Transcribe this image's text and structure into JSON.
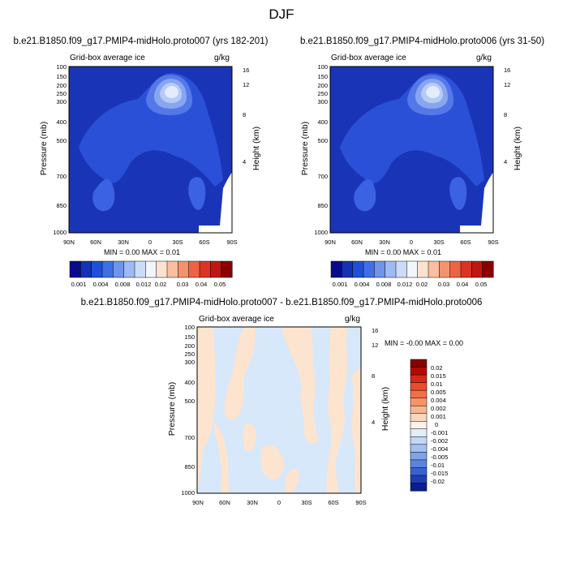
{
  "figure": {
    "title": "DJF",
    "colors": {
      "deep_blue": "#0a1f8f",
      "mid_blue": "#2a4fd8",
      "light_blue": "#8fb2f2",
      "peach": "#fde4cf",
      "pale_blue": "#d6e8fa",
      "dark_red": "#8b0000"
    }
  },
  "chart_data": [
    {
      "type": "heatmap",
      "id": "panel-a",
      "title": "b.e21.B1850.f09_g17.PMIP4-midHolo.proto007 (yrs 182-201)",
      "left_label": "Grid-box average ice",
      "right_label": "g/kg",
      "ylabel": "Pressure (mb)",
      "ylabel_right": "Height (km)",
      "x_ticks": [
        "90N",
        "60N",
        "30N",
        "0",
        "30S",
        "60S",
        "90S"
      ],
      "y_ticks": [
        "100",
        "150",
        "200",
        "250",
        "300",
        "400",
        "500",
        "700",
        "850",
        "1000"
      ],
      "y_ticks_right": [
        "16",
        "12",
        "8",
        "4"
      ],
      "ylim": [
        1000,
        100
      ],
      "min_max": "MIN =  0.00  MAX =  0.01",
      "colorbar_labels": [
        "0.001",
        "0.004",
        "0.008",
        "0.012",
        "0.02",
        "0.03",
        "0.04",
        "0.05"
      ],
      "colorbar_colors": [
        "#0a0a8c",
        "#1532b4",
        "#2050d8",
        "#3f6fe6",
        "#6f94ec",
        "#9dbaf3",
        "#cbdcf8",
        "#f2f5fc",
        "#fde2ce",
        "#f9bfa0",
        "#f4926d",
        "#ec6444",
        "#dc3424",
        "#bf1812",
        "#8b0000"
      ],
      "peak_value_g_per_kg": 0.01,
      "peak_location": "0-20S near 250 mb"
    },
    {
      "type": "heatmap",
      "id": "panel-b",
      "title": "b.e21.B1850.f09_g17.PMIP4-midHolo.proto006 (yrs 31-50)",
      "left_label": "Grid-box average ice",
      "right_label": "g/kg",
      "ylabel": "Pressure (mb)",
      "ylabel_right": "Height (km)",
      "x_ticks": [
        "90N",
        "60N",
        "30N",
        "0",
        "30S",
        "60S",
        "90S"
      ],
      "y_ticks": [
        "100",
        "150",
        "200",
        "250",
        "300",
        "400",
        "500",
        "700",
        "850",
        "1000"
      ],
      "y_ticks_right": [
        "16",
        "12",
        "8",
        "4"
      ],
      "ylim": [
        1000,
        100
      ],
      "min_max": "MIN =  0.00  MAX =  0.01",
      "colorbar_labels": [
        "0.001",
        "0.004",
        "0.008",
        "0.012",
        "0.02",
        "0.03",
        "0.04",
        "0.05"
      ],
      "colorbar_colors": [
        "#0a0a8c",
        "#1532b4",
        "#2050d8",
        "#3f6fe6",
        "#6f94ec",
        "#9dbaf3",
        "#cbdcf8",
        "#f2f5fc",
        "#fde2ce",
        "#f9bfa0",
        "#f4926d",
        "#ec6444",
        "#dc3424",
        "#bf1812",
        "#8b0000"
      ],
      "peak_value_g_per_kg": 0.01,
      "peak_location": "0-20S near 250 mb"
    },
    {
      "type": "heatmap",
      "id": "panel-diff",
      "title": "b.e21.B1850.f09_g17.PMIP4-midHolo.proto007 - b.e21.B1850.f09_g17.PMIP4-midHolo.proto006",
      "left_label": "Grid-box average ice",
      "right_label": "g/kg",
      "ylabel": "Pressure (mb)",
      "ylabel_right": "Height (km)",
      "x_ticks": [
        "90N",
        "60N",
        "30N",
        "0",
        "30S",
        "60S",
        "90S"
      ],
      "y_ticks": [
        "100",
        "150",
        "200",
        "250",
        "300",
        "400",
        "500",
        "700",
        "850",
        "1000"
      ],
      "y_ticks_right": [
        "16",
        "12",
        "8",
        "4"
      ],
      "ylim": [
        1000,
        100
      ],
      "min_max": "MIN = -0.00  MAX =  0.00",
      "colorbar_labels": [
        "0.02",
        "0.015",
        "0.01",
        "0.005",
        "0.004",
        "0.002",
        "0.001",
        "0",
        "-0.001",
        "-0.002",
        "-0.004",
        "-0.005",
        "-0.01",
        "-0.015",
        "-0.02"
      ],
      "colorbar_colors": [
        "#8b0000",
        "#b40a04",
        "#d42a16",
        "#e84c2c",
        "#f27048",
        "#f69468",
        "#f9b690",
        "#fcd6bc",
        "#fdf3ea",
        "#e2ecfa",
        "#c3d8f6",
        "#a2c0f0",
        "#7ea3e8",
        "#5b84de",
        "#3662d2",
        "#1e3fb4",
        "#0a1e8c"
      ]
    }
  ]
}
